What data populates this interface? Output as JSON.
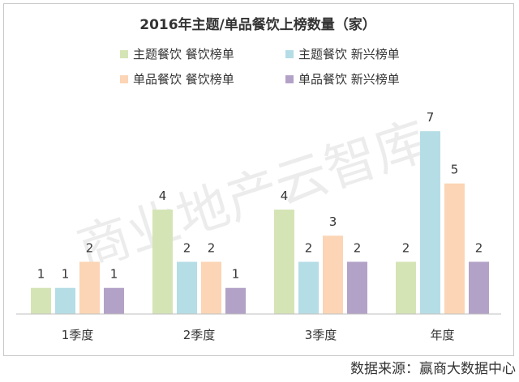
{
  "chart_data": {
    "type": "bar",
    "title": "2016年主题/单品餐饮上榜数量（家）",
    "categories": [
      "1季度",
      "2季度",
      "3季度",
      "年度"
    ],
    "series": [
      {
        "name": "主题餐饮  餐饮榜单",
        "color": "#d5e4b5",
        "values": [
          1,
          4,
          4,
          2
        ]
      },
      {
        "name": "主题餐饮  新兴榜单",
        "color": "#b5dde6",
        "values": [
          1,
          2,
          2,
          7
        ]
      },
      {
        "name": "单品餐饮  餐饮榜单",
        "color": "#fbd5b5",
        "values": [
          2,
          2,
          3,
          5
        ]
      },
      {
        "name": "单品餐饮  新兴榜单",
        "color": "#b3a2c7",
        "values": [
          1,
          1,
          2,
          2
        ]
      }
    ],
    "ylim": [
      0,
      7.5
    ],
    "legend_position": "top",
    "grid": false
  },
  "watermark": "商业地产云智库",
  "source_note": "数据来源：赢商大数据中心"
}
